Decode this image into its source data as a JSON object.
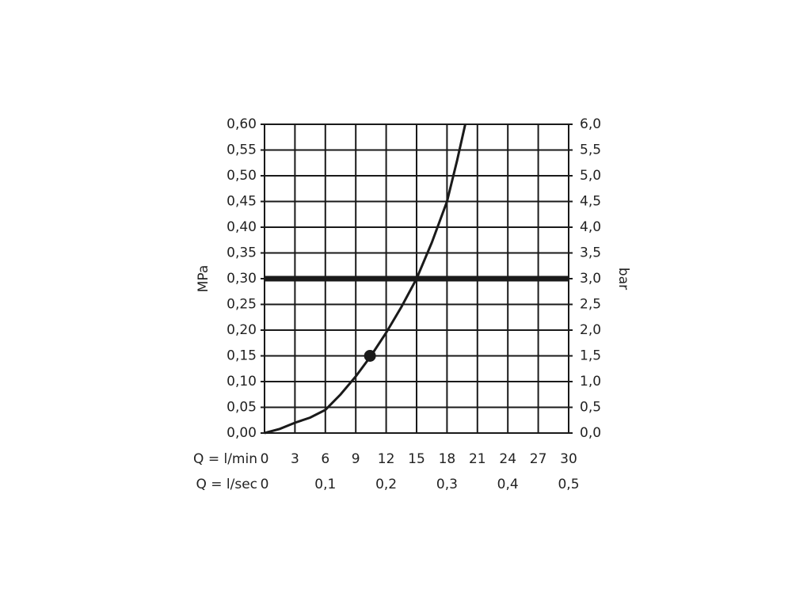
{
  "chart_data": {
    "type": "line",
    "ylabel": "MPa",
    "y2label": "bar",
    "xlabel": "Q = l/min",
    "x2label": "Q = l/sec",
    "x": [
      0,
      1.5,
      3,
      4.5,
      6,
      7.5,
      9,
      10.5,
      12,
      13.5,
      15,
      16.5,
      18,
      19,
      19.8
    ],
    "values": [
      0,
      0.008,
      0.02,
      0.03,
      0.045,
      0.075,
      0.11,
      0.15,
      0.195,
      0.245,
      0.3,
      0.37,
      0.45,
      0.53,
      0.6
    ],
    "color": "#1a1a1a",
    "xlim": [
      0,
      30
    ],
    "xticks": [
      0,
      3,
      6,
      9,
      12,
      15,
      18,
      21,
      24,
      27,
      30
    ],
    "x2lim": [
      0,
      0.5
    ],
    "x2ticks": [
      0,
      {
        "value": 0.1,
        "label": "0,1"
      },
      {
        "value": 0.2,
        "label": "0,2"
      },
      {
        "value": 0.3,
        "label": "0,3"
      },
      {
        "value": 0.4,
        "label": "0,4"
      },
      {
        "value": 0.5,
        "label": "0,5"
      }
    ],
    "ylim": [
      0,
      0.6
    ],
    "yticks": [
      {
        "value": 0,
        "label": "0,00"
      },
      {
        "value": 0.05,
        "label": "0,05"
      },
      {
        "value": 0.1,
        "label": "0,10"
      },
      {
        "value": 0.15,
        "label": "0,15"
      },
      {
        "value": 0.2,
        "label": "0,20"
      },
      {
        "value": 0.25,
        "label": "0,25"
      },
      {
        "value": 0.3,
        "label": "0,30"
      },
      {
        "value": 0.35,
        "label": "0,35"
      },
      {
        "value": 0.4,
        "label": "0,40"
      },
      {
        "value": 0.45,
        "label": "0,45"
      },
      {
        "value": 0.5,
        "label": "0,50"
      },
      {
        "value": 0.55,
        "label": "0,55"
      },
      {
        "value": 0.6,
        "label": "0,60"
      }
    ],
    "y2lim": [
      0,
      6
    ],
    "y2ticks": [
      {
        "value": 0,
        "label": "0,0"
      },
      {
        "value": 0.5,
        "label": "0,5"
      },
      {
        "value": 1,
        "label": "1,0"
      },
      {
        "value": 1.5,
        "label": "1,5"
      },
      {
        "value": 2,
        "label": "2,0"
      },
      {
        "value": 2.5,
        "label": "2,5"
      },
      {
        "value": 3,
        "label": "3,0"
      },
      {
        "value": 3.5,
        "label": "3,5"
      },
      {
        "value": 4,
        "label": "4,0"
      },
      {
        "value": 4.5,
        "label": "4,5"
      },
      {
        "value": 5,
        "label": "5,0"
      },
      {
        "value": 5.5,
        "label": "5,5"
      },
      {
        "value": 6,
        "label": "6,0"
      }
    ],
    "grid": true,
    "reference_line": 0.3,
    "reference_x": 15,
    "marker": {
      "x": 10.4,
      "y": 0.15
    }
  }
}
